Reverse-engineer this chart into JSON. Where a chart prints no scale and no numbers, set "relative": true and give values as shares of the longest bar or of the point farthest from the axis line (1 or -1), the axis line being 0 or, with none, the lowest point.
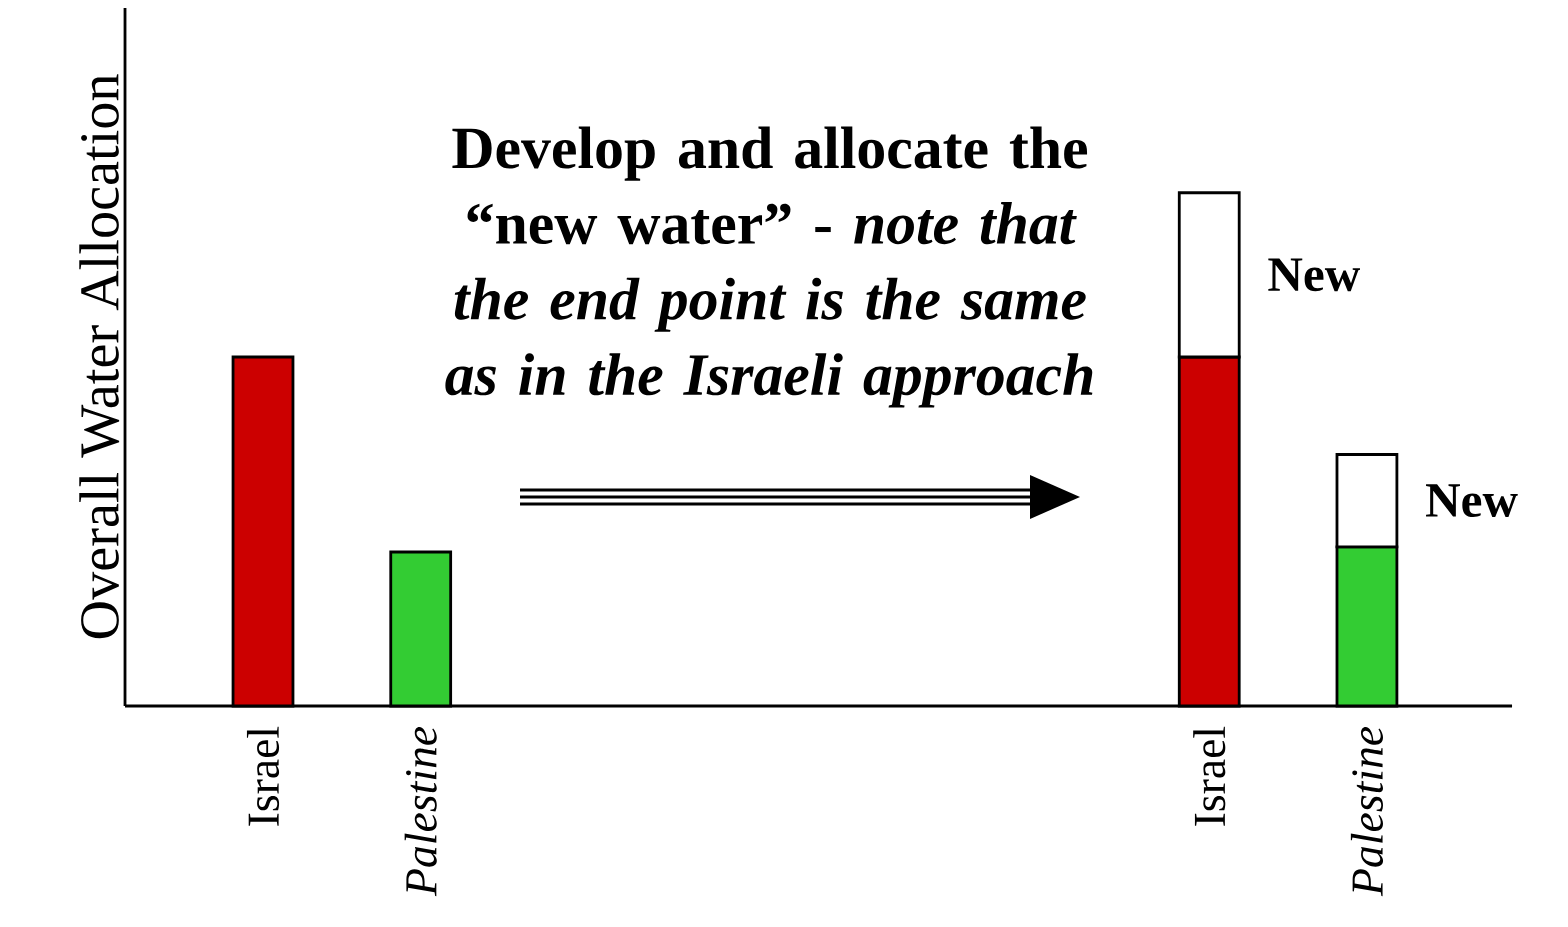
{
  "chart_data": {
    "type": "bar",
    "ylabel": "Overall Water Allocation",
    "relative": true,
    "stacked": true,
    "categories": [
      "Israel",
      "*Palestine*",
      null,
      null,
      null,
      null,
      "Israel",
      "*Palestine*"
    ],
    "series": [
      {
        "colors": [
          "#cc0000",
          "#33cc33",
          null,
          null,
          null,
          null,
          "#cc0000",
          "#33cc33"
        ],
        "values": [
          0.68,
          0.3,
          null,
          null,
          null,
          null,
          0.68,
          0.31
        ]
      },
      {
        "name": "New",
        "color": "#ffffff",
        "values": [
          null,
          null,
          null,
          null,
          null,
          null,
          0.32,
          0.18
        ]
      }
    ],
    "annotations": [
      "Develop and allocate the “new water” - *note that the end point is the same as in the Israeli approach*"
    ]
  }
}
